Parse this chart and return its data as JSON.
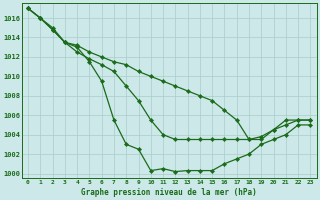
{
  "title": "Graphe pression niveau de la mer (hPa)",
  "background_color": "#cce8e8",
  "grid_color": "#aacccc",
  "line_color": "#1a6b1a",
  "ylim": [
    999.5,
    1017.5
  ],
  "xlim": [
    -0.5,
    23.5
  ],
  "yticks": [
    1000,
    1002,
    1004,
    1006,
    1008,
    1010,
    1012,
    1014,
    1016
  ],
  "xtick_labels": [
    "0",
    "1",
    "2",
    "3",
    "4",
    "5",
    "6",
    "7",
    "8",
    "9",
    "10",
    "11",
    "12",
    "13",
    "14",
    "15",
    "16",
    "17",
    "18",
    "19",
    "20",
    "21",
    "22",
    "23"
  ],
  "series": [
    [
      1017,
      1016,
      1015,
      1013.5,
      1013,
      1011.5,
      1009.5,
      1005.5,
      1003.0,
      1002.5,
      1000.3,
      1000.5,
      1000.2,
      1000.3,
      1000.3,
      1000.3,
      1001.0,
      1001.5,
      1002.0,
      1003.0,
      1003.5,
      1004.0,
      1005.0,
      1005.0
    ],
    [
      1017,
      1016,
      1014.8,
      1013.5,
      1012.5,
      1011.8,
      1011.2,
      1010.5,
      1009.0,
      1007.5,
      1005.5,
      1004.0,
      1003.5,
      1003.5,
      1003.5,
      1003.5,
      1003.5,
      1003.5,
      1003.5,
      1003.5,
      1004.5,
      1005.5,
      1005.5,
      1005.5
    ],
    [
      1017,
      1016,
      1014.8,
      1013.5,
      1013.2,
      1012.5,
      1012.0,
      1011.5,
      1011.2,
      1010.5,
      1010.0,
      1009.5,
      1009.0,
      1008.5,
      1008.0,
      1007.5,
      1006.5,
      1005.5,
      1003.5,
      1003.8,
      1004.5,
      1005.0,
      1005.5,
      1005.5
    ]
  ]
}
